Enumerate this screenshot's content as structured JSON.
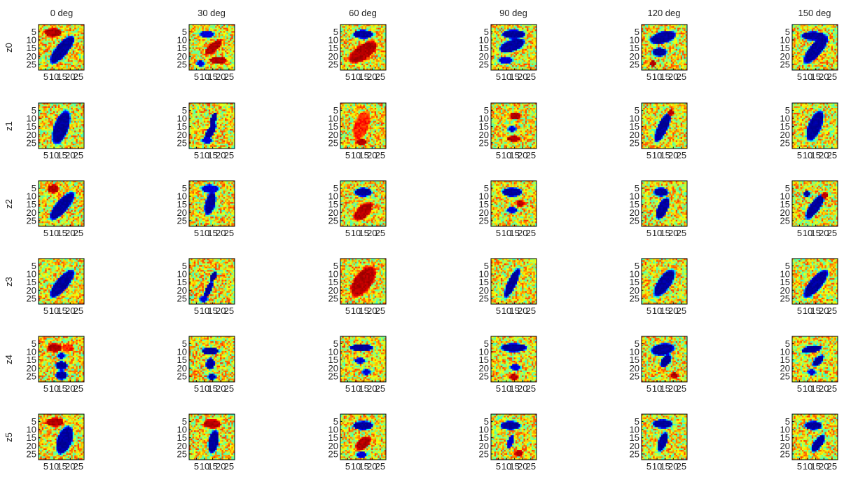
{
  "chart_data": {
    "type": "heatmap",
    "layout": "small-multiples grid (6 rows x 6 columns)",
    "column_titles": [
      "0 deg",
      "30 deg",
      "60 deg",
      "90 deg",
      "120 deg",
      "150 deg"
    ],
    "row_labels": [
      "z0",
      "z1",
      "z2",
      "z3",
      "z4",
      "z5"
    ],
    "y_ticks": [
      5,
      10,
      15,
      20,
      25
    ],
    "x_ticks": [
      5,
      10,
      15,
      20,
      25
    ],
    "x_tick_text": [
      "5",
      "10",
      "15",
      "20",
      "25"
    ],
    "y_tick_text": [
      "5",
      "10",
      "15",
      "20",
      "25"
    ],
    "grid_size": 28,
    "colormap": "jet",
    "colormap_stops": [
      "#00008f",
      "#0000ff",
      "#00ffff",
      "#ffff00",
      "#ff0000",
      "#800000"
    ],
    "axis_color": "#000000"
  }
}
